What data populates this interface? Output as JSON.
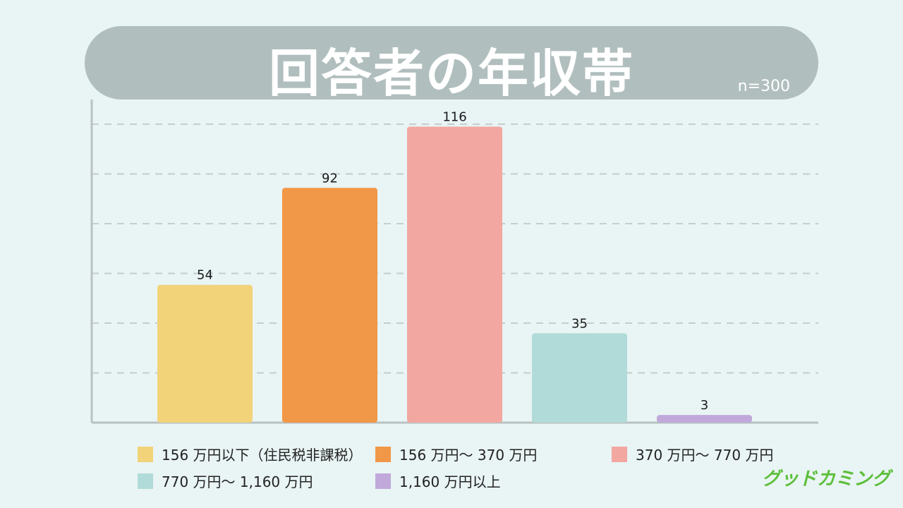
{
  "header": {
    "title": "回答者の年収帯",
    "sample_size": "n=300"
  },
  "chart_data": {
    "type": "bar",
    "title": "回答者の年収帯",
    "categories": [
      "156 万円以下（住民税非課税）",
      "156 万円〜 370 万円",
      "370 万円〜 770 万円",
      "770 万円〜 1,160 万円",
      "1,160 万円以上"
    ],
    "values": [
      54,
      92,
      116,
      35,
      3
    ],
    "colors": [
      "#f2d37a",
      "#f19748",
      "#f2a7a1",
      "#b1dbd8",
      "#c0a9da"
    ],
    "ylim": [
      0,
      120
    ],
    "grid": true,
    "legend_position": "bottom",
    "xlabel": "",
    "ylabel": ""
  },
  "legend": {
    "items": [
      {
        "label": "156 万円以下（住民税非課税）",
        "color": "#f2d37a"
      },
      {
        "label": "156 万円〜 370 万円",
        "color": "#f19748"
      },
      {
        "label": "370 万円〜 770 万円",
        "color": "#f2a7a1"
      },
      {
        "label": "770 万円〜 1,160 万円",
        "color": "#b1dbd8"
      },
      {
        "label": "1,160 万円以上",
        "color": "#c0a9da"
      }
    ]
  },
  "brand": {
    "logo_text": "グッドカミング",
    "color": "#5cbf3a"
  },
  "colors": {
    "background": "#e9f4f4",
    "banner": "#b1bebe",
    "axis": "#b9c2c2",
    "grid": "#c5cdcd"
  }
}
